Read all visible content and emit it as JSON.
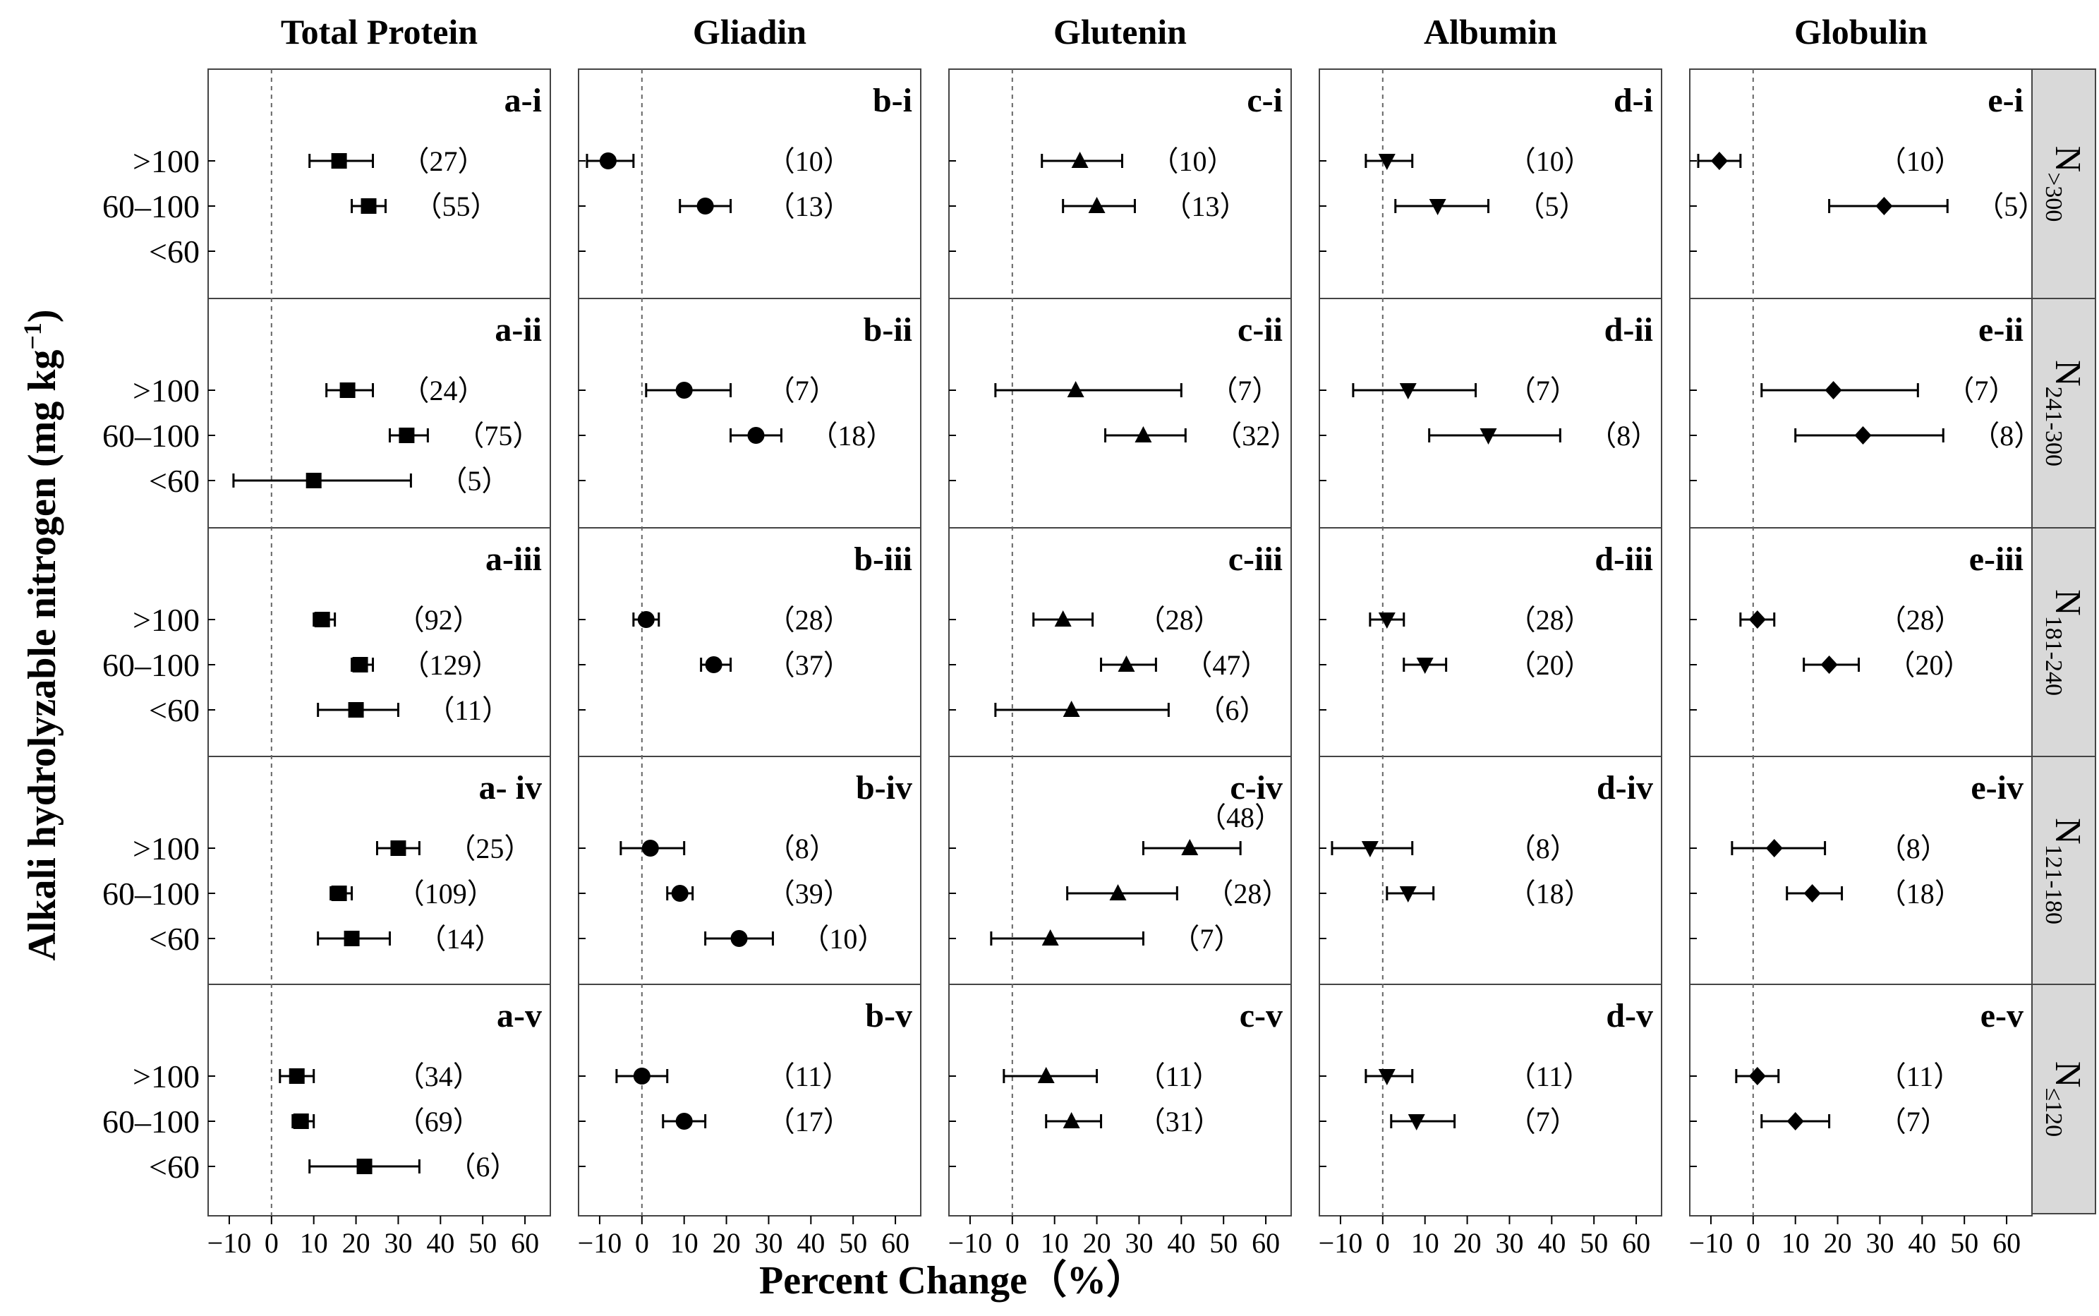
{
  "chart_data": {
    "type": "forest",
    "xlabel": "Percent Change（%）",
    "ylabel": "Alkali hydrolyzable nitrogen (mg kg",
    "ylabel_sup": "−1",
    "ylabel_close": ")",
    "categories": [
      ">100",
      "60–100",
      "<60"
    ],
    "x_range": [
      -15,
      66
    ],
    "x_ticks": [
      -10,
      0,
      10,
      20,
      30,
      40,
      50,
      60
    ],
    "x_tick_labels": [
      "−10",
      "0",
      "10",
      "20",
      "30",
      "40",
      "50",
      "60"
    ],
    "columns": [
      {
        "title": "Total Protein",
        "prefix": "a",
        "marker": "square"
      },
      {
        "title": "Gliadin",
        "prefix": "b",
        "marker": "circle"
      },
      {
        "title": "Glutenin",
        "prefix": "c",
        "marker": "triangle-up"
      },
      {
        "title": "Albumin",
        "prefix": "d",
        "marker": "triangle-down"
      },
      {
        "title": "Globulin",
        "prefix": "e",
        "marker": "diamond"
      }
    ],
    "rows": [
      {
        "strip": "N",
        "strip_sub": ">300"
      },
      {
        "strip": "N",
        "strip_sub": "241-300"
      },
      {
        "strip": "N",
        "strip_sub": "181-240"
      },
      {
        "strip": "N",
        "strip_sub": "121-180"
      },
      {
        "strip": "N",
        "strip_sub": "≤120"
      }
    ],
    "panels": [
      {
        "col": 0,
        "row": 0,
        "label": "a-i",
        "points": [
          {
            "cat": 0,
            "mean": 16,
            "low": 9,
            "high": 24,
            "n": "（27）"
          },
          {
            "cat": 1,
            "mean": 23,
            "low": 19,
            "high": 27,
            "n": "（55）"
          }
        ]
      },
      {
        "col": 0,
        "row": 1,
        "label": "a-ii",
        "points": [
          {
            "cat": 0,
            "mean": 18,
            "low": 13,
            "high": 24,
            "n": "（24）"
          },
          {
            "cat": 1,
            "mean": 32,
            "low": 28,
            "high": 37,
            "n": "（75）"
          },
          {
            "cat": 2,
            "mean": 10,
            "low": -9,
            "high": 33,
            "n": "（5）"
          }
        ]
      },
      {
        "col": 0,
        "row": 2,
        "label": "a-iii",
        "points": [
          {
            "cat": 0,
            "mean": 12,
            "low": 10,
            "high": 15,
            "n": "（92）"
          },
          {
            "cat": 1,
            "mean": 21,
            "low": 19,
            "high": 24,
            "n": "（129）"
          },
          {
            "cat": 2,
            "mean": 20,
            "low": 11,
            "high": 30,
            "n": "（11）"
          }
        ]
      },
      {
        "col": 0,
        "row": 3,
        "label": "a- iv",
        "points": [
          {
            "cat": 0,
            "mean": 30,
            "low": 25,
            "high": 35,
            "n": "（25）"
          },
          {
            "cat": 1,
            "mean": 16,
            "low": 14,
            "high": 19,
            "n": "（109）"
          },
          {
            "cat": 2,
            "mean": 19,
            "low": 11,
            "high": 28,
            "n": "（14）"
          }
        ]
      },
      {
        "col": 0,
        "row": 4,
        "label": "a-v",
        "points": [
          {
            "cat": 0,
            "mean": 6,
            "low": 2,
            "high": 10,
            "n": "（34）"
          },
          {
            "cat": 1,
            "mean": 7,
            "low": 5,
            "high": 10,
            "n": "（69）"
          },
          {
            "cat": 2,
            "mean": 22,
            "low": 9,
            "high": 35,
            "n": "（6）"
          }
        ]
      },
      {
        "col": 1,
        "row": 0,
        "label": "b-i",
        "points": [
          {
            "cat": 0,
            "mean": -8,
            "low": -13,
            "high": -2,
            "n": "（10）"
          },
          {
            "cat": 1,
            "mean": 15,
            "low": 9,
            "high": 21,
            "n": "（13）"
          }
        ]
      },
      {
        "col": 1,
        "row": 1,
        "label": "b-ii",
        "points": [
          {
            "cat": 0,
            "mean": 10,
            "low": 1,
            "high": 21,
            "n": "（7）"
          },
          {
            "cat": 1,
            "mean": 27,
            "low": 21,
            "high": 33,
            "n": "（18）"
          }
        ]
      },
      {
        "col": 1,
        "row": 2,
        "label": "b-iii",
        "points": [
          {
            "cat": 0,
            "mean": 1,
            "low": -2,
            "high": 4,
            "n": "（28）"
          },
          {
            "cat": 1,
            "mean": 17,
            "low": 14,
            "high": 21,
            "n": "（37）"
          }
        ]
      },
      {
        "col": 1,
        "row": 3,
        "label": "b-iv",
        "points": [
          {
            "cat": 0,
            "mean": 2,
            "low": -5,
            "high": 10,
            "n": "（8）"
          },
          {
            "cat": 1,
            "mean": 9,
            "low": 6,
            "high": 12,
            "n": "（39）"
          },
          {
            "cat": 2,
            "mean": 23,
            "low": 15,
            "high": 31,
            "n": "（10）"
          }
        ]
      },
      {
        "col": 1,
        "row": 4,
        "label": "b-v",
        "points": [
          {
            "cat": 0,
            "mean": 0,
            "low": -6,
            "high": 6,
            "n": "（11）"
          },
          {
            "cat": 1,
            "mean": 10,
            "low": 5,
            "high": 15,
            "n": "（17）"
          }
        ]
      },
      {
        "col": 2,
        "row": 0,
        "label": "c-i",
        "points": [
          {
            "cat": 0,
            "mean": 16,
            "low": 7,
            "high": 26,
            "n": "（10）"
          },
          {
            "cat": 1,
            "mean": 20,
            "low": 12,
            "high": 29,
            "n": "（13）"
          }
        ]
      },
      {
        "col": 2,
        "row": 1,
        "label": "c-ii",
        "points": [
          {
            "cat": 0,
            "mean": 15,
            "low": -4,
            "high": 40,
            "n": "（7）"
          },
          {
            "cat": 1,
            "mean": 31,
            "low": 22,
            "high": 41,
            "n": "（32）"
          }
        ]
      },
      {
        "col": 2,
        "row": 2,
        "label": "c-iii",
        "points": [
          {
            "cat": 0,
            "mean": 12,
            "low": 5,
            "high": 19,
            "n": "（28）"
          },
          {
            "cat": 1,
            "mean": 27,
            "low": 21,
            "high": 34,
            "n": "（47）"
          },
          {
            "cat": 2,
            "mean": 14,
            "low": -4,
            "high": 37,
            "n": "（6）"
          }
        ]
      },
      {
        "col": 2,
        "row": 3,
        "label": "c-iv",
        "n_above": "（48）",
        "points": [
          {
            "cat": 0,
            "mean": 42,
            "low": 31,
            "high": 54,
            "n": ""
          },
          {
            "cat": 1,
            "mean": 25,
            "low": 13,
            "high": 39,
            "n": "（28）"
          },
          {
            "cat": 2,
            "mean": 9,
            "low": -5,
            "high": 31,
            "n": "（7）"
          }
        ]
      },
      {
        "col": 2,
        "row": 4,
        "label": "c-v",
        "points": [
          {
            "cat": 0,
            "mean": 8,
            "low": -2,
            "high": 20,
            "n": "（11）"
          },
          {
            "cat": 1,
            "mean": 14,
            "low": 8,
            "high": 21,
            "n": "（31）"
          }
        ]
      },
      {
        "col": 3,
        "row": 0,
        "label": "d-i",
        "points": [
          {
            "cat": 0,
            "mean": 1,
            "low": -4,
            "high": 7,
            "n": "（10）"
          },
          {
            "cat": 1,
            "mean": 13,
            "low": 3,
            "high": 25,
            "n": "（5）"
          }
        ]
      },
      {
        "col": 3,
        "row": 1,
        "label": "d-ii",
        "points": [
          {
            "cat": 0,
            "mean": 6,
            "low": -7,
            "high": 22,
            "n": "（7）"
          },
          {
            "cat": 1,
            "mean": 25,
            "low": 11,
            "high": 42,
            "n": "（8）"
          }
        ]
      },
      {
        "col": 3,
        "row": 2,
        "label": "d-iii",
        "points": [
          {
            "cat": 0,
            "mean": 1,
            "low": -3,
            "high": 5,
            "n": "（28）"
          },
          {
            "cat": 1,
            "mean": 10,
            "low": 5,
            "high": 15,
            "n": "（20）"
          }
        ]
      },
      {
        "col": 3,
        "row": 3,
        "label": "d-iv",
        "points": [
          {
            "cat": 0,
            "mean": -3,
            "low": -12,
            "high": 7,
            "n": "（8）"
          },
          {
            "cat": 1,
            "mean": 6,
            "low": 1,
            "high": 12,
            "n": "（18）"
          }
        ]
      },
      {
        "col": 3,
        "row": 4,
        "label": "d-v",
        "points": [
          {
            "cat": 0,
            "mean": 1,
            "low": -4,
            "high": 7,
            "n": "（11）"
          },
          {
            "cat": 1,
            "mean": 8,
            "low": 2,
            "high": 17,
            "n": "（7）"
          }
        ]
      },
      {
        "col": 4,
        "row": 0,
        "label": "e-i",
        "points": [
          {
            "cat": 0,
            "mean": -8,
            "low": -13,
            "high": -3,
            "n": "（10）"
          },
          {
            "cat": 1,
            "mean": 31,
            "low": 18,
            "high": 46,
            "n": "（5）"
          }
        ]
      },
      {
        "col": 4,
        "row": 1,
        "label": "e-ii",
        "points": [
          {
            "cat": 0,
            "mean": 19,
            "low": 2,
            "high": 39,
            "n": "（7）"
          },
          {
            "cat": 1,
            "mean": 26,
            "low": 10,
            "high": 45,
            "n": "（8）"
          }
        ]
      },
      {
        "col": 4,
        "row": 2,
        "label": "e-iii",
        "points": [
          {
            "cat": 0,
            "mean": 1,
            "low": -3,
            "high": 5,
            "n": "（28）"
          },
          {
            "cat": 1,
            "mean": 18,
            "low": 12,
            "high": 25,
            "n": "（20）"
          }
        ]
      },
      {
        "col": 4,
        "row": 3,
        "label": "e-iv",
        "points": [
          {
            "cat": 0,
            "mean": 5,
            "low": -5,
            "high": 17,
            "n": "（8）"
          },
          {
            "cat": 1,
            "mean": 14,
            "low": 8,
            "high": 21,
            "n": "（18）"
          }
        ]
      },
      {
        "col": 4,
        "row": 4,
        "label": "e-v",
        "points": [
          {
            "cat": 0,
            "mean": 1,
            "low": -4,
            "high": 6,
            "n": "（11）"
          },
          {
            "cat": 1,
            "mean": 10,
            "low": 2,
            "high": 18,
            "n": "（7）"
          }
        ]
      }
    ]
  }
}
